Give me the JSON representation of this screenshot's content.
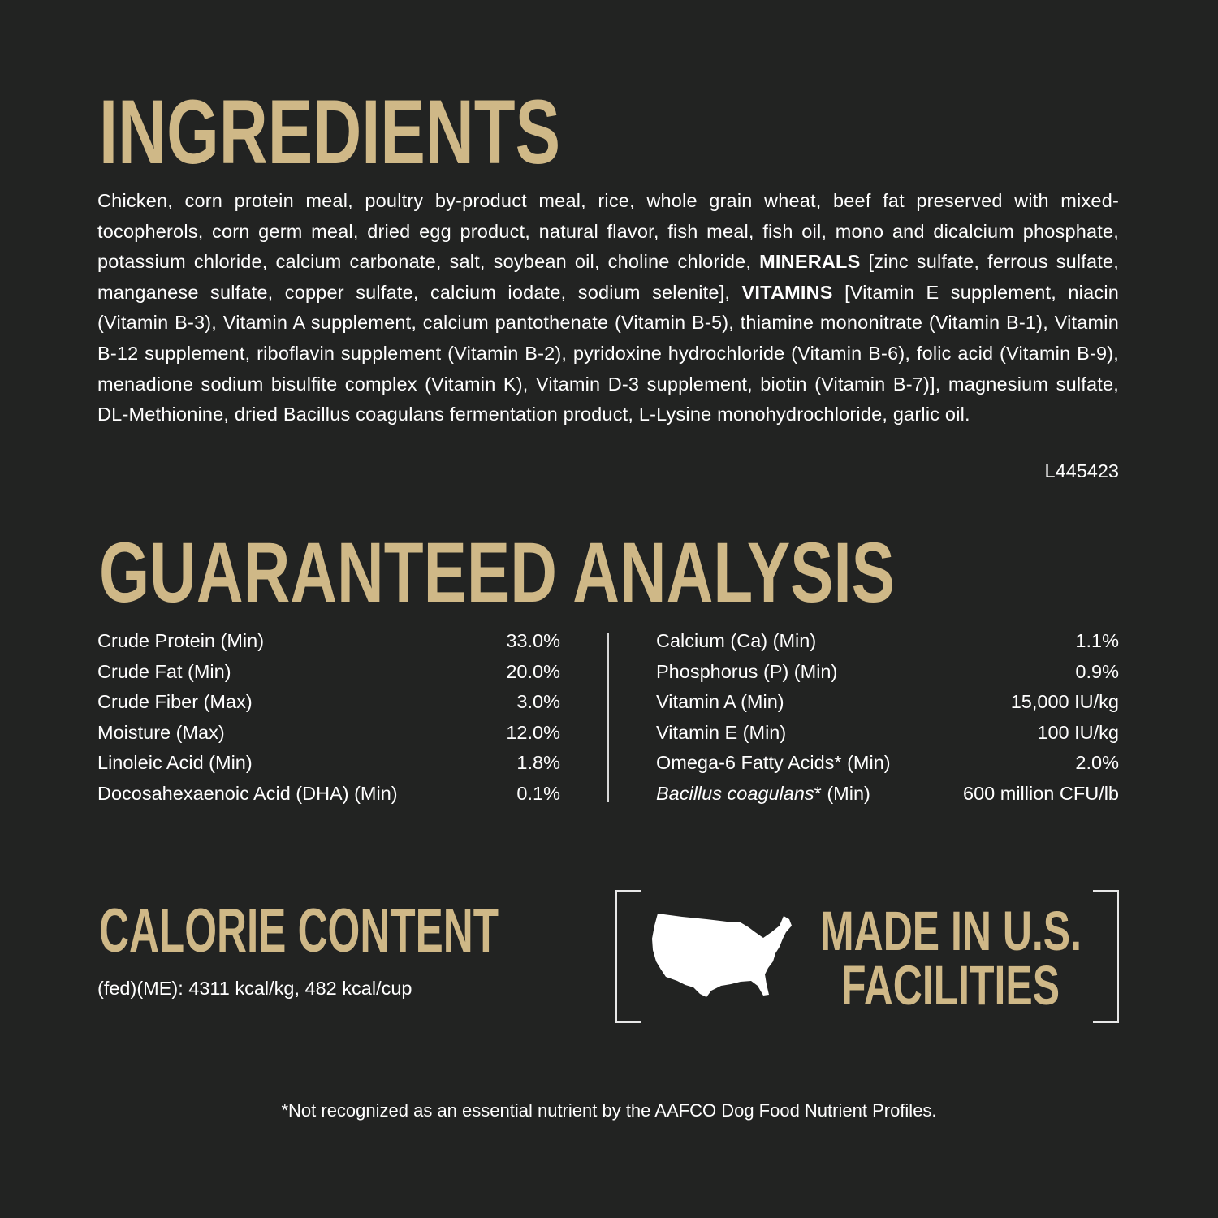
{
  "ingredients": {
    "title": "INGREDIENTS",
    "text_1": "Chicken, corn protein meal, poultry by-product meal, rice, whole grain wheat, beef fat preserved with mixed-tocopherols, corn germ meal, dried egg product, natural flavor, fish meal, fish oil, mono and dicalcium phosphate, potassium chloride, calcium carbonate, salt, soybean oil, choline chloride,",
    "minerals_label": "MINERALS",
    "text_2": "[zinc sulfate, ferrous sulfate, manganese sulfate, copper sulfate, calcium iodate, sodium selenite],",
    "vitamins_label": "VITAMINS",
    "text_3": "[Vitamin E supplement, niacin (Vitamin B-3), Vitamin A supplement, calcium pantothenate (Vitamin B-5), thiamine mononitrate (Vitamin B-1), Vitamin B-12 supplement, riboflavin supplement (Vitamin B-2), pyridoxine hydrochloride (Vitamin B-6), folic acid (Vitamin B-9), menadione sodium bisulfite complex (Vitamin K), Vitamin D-3 supplement, biotin (Vitamin B-7)], magnesium sulfate, DL-Methionine, dried Bacillus coagulans fermentation product, L-Lysine monohydrochloride, garlic oil.",
    "lot_code": "L445423"
  },
  "analysis": {
    "title": "GUARANTEED ANALYSIS",
    "left": [
      {
        "name": "Crude Protein (Min)",
        "value": "33.0%"
      },
      {
        "name": "Crude Fat (Min)",
        "value": "20.0%"
      },
      {
        "name": "Crude Fiber (Max)",
        "value": "3.0%"
      },
      {
        "name": "Moisture (Max)",
        "value": "12.0%"
      },
      {
        "name": "Linoleic Acid (Min)",
        "value": "1.8%"
      },
      {
        "name": "Docosahexaenoic Acid (DHA) (Min)",
        "value": "0.1%"
      }
    ],
    "right": [
      {
        "name": "Calcium (Ca) (Min)",
        "value": "1.1%"
      },
      {
        "name": "Phosphorus (P) (Min)",
        "value": "0.9%"
      },
      {
        "name": "Vitamin A (Min)",
        "value": "15,000 IU/kg"
      },
      {
        "name": "Vitamin E (Min)",
        "value": "100 IU/kg"
      },
      {
        "name": "Omega-6 Fatty Acids* (Min)",
        "value": "2.0%"
      }
    ],
    "bacillus": {
      "name_italic": "Bacillus coagulans",
      "name_rest": "* (Min)",
      "value": "600 million CFU/lb"
    }
  },
  "calorie": {
    "title": "CALORIE CONTENT",
    "text": "(fed)(ME): 4311 kcal/kg, 482 kcal/cup"
  },
  "badge": {
    "line1": "MADE IN U.S.",
    "line2": "FACILITIES",
    "icon": "usa-map-icon"
  },
  "footnote": "*Not recognized as an essential nutrient by the AAFCO Dog Food Nutrient Profiles.",
  "colors": {
    "background": "#222322",
    "heading_gold": "#cfb887",
    "text": "#ffffff"
  }
}
